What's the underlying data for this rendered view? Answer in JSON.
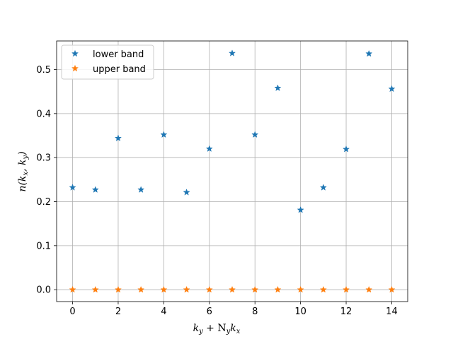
{
  "chart_data": {
    "type": "scatter",
    "title": "",
    "xlabel": "k_y + N_y k_x",
    "ylabel": "n(k_x, k_y)",
    "xlim": [
      -0.7,
      14.7
    ],
    "ylim": [
      -0.027,
      0.565
    ],
    "xticks": [
      0,
      2,
      4,
      6,
      8,
      10,
      12,
      14
    ],
    "yticks": [
      0.0,
      0.1,
      0.2,
      0.3,
      0.4,
      0.5
    ],
    "xtick_labels": [
      "0",
      "2",
      "4",
      "6",
      "8",
      "10",
      "12",
      "14"
    ],
    "ytick_labels": [
      "0.0",
      "0.1",
      "0.2",
      "0.3",
      "0.4",
      "0.5"
    ],
    "grid": true,
    "legend_position": "top-left",
    "marker": "star",
    "series": [
      {
        "name": "lower band",
        "color": "#1f77b4",
        "x": [
          0,
          1,
          2,
          3,
          4,
          5,
          6,
          7,
          8,
          9,
          10,
          11,
          12,
          13,
          14
        ],
        "y": [
          0.232,
          0.227,
          0.344,
          0.227,
          0.352,
          0.221,
          0.32,
          0.537,
          0.352,
          0.458,
          0.181,
          0.232,
          0.319,
          0.536,
          0.456
        ]
      },
      {
        "name": "upper band",
        "color": "#ff7f0e",
        "x": [
          0,
          1,
          2,
          3,
          4,
          5,
          6,
          7,
          8,
          9,
          10,
          11,
          12,
          13,
          14
        ],
        "y": [
          0.0,
          0.0,
          0.0,
          0.0,
          0.0,
          0.0,
          0.0,
          0.0,
          0.0,
          0.0,
          0.0,
          0.0,
          0.0,
          0.0,
          0.0
        ]
      }
    ]
  }
}
